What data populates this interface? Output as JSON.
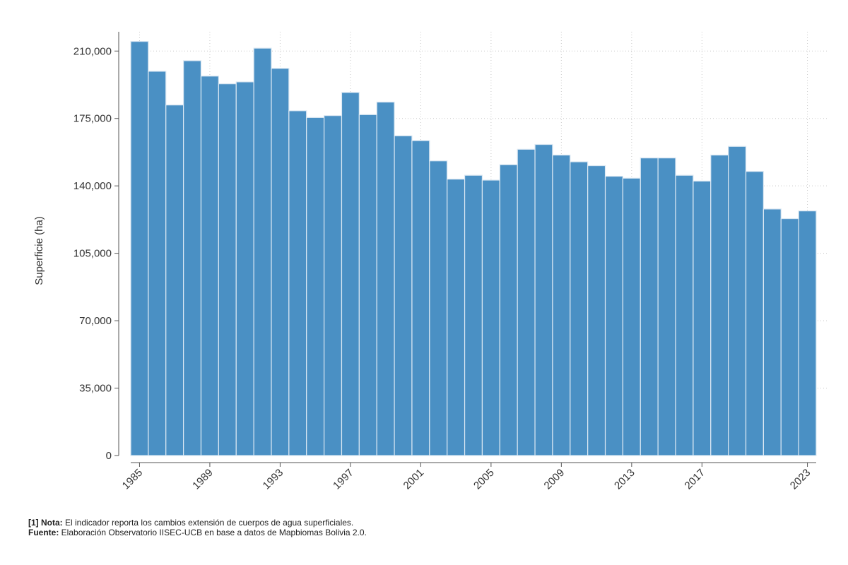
{
  "chart_data": {
    "type": "bar",
    "title": "",
    "ylabel": "Superficie (ha)",
    "xlabel": "",
    "ylim": [
      0,
      220000
    ],
    "xlim": [
      1984.5,
      2023.5
    ],
    "yticks": [
      0,
      35000,
      70000,
      105000,
      140000,
      175000,
      210000
    ],
    "ytick_labels": [
      "0",
      "35,000",
      "70,000",
      "105,000",
      "140,000",
      "175,000",
      "210,000"
    ],
    "xticks": [
      1985,
      1989,
      1993,
      1997,
      2001,
      2005,
      2009,
      2013,
      2017,
      2023
    ],
    "xtick_labels": [
      "1985",
      "1989",
      "1993",
      "1997",
      "2001",
      "2005",
      "2009",
      "2013",
      "2017",
      "2023"
    ],
    "grid": true,
    "bar_color": "#4a90c4",
    "categories": [
      1985,
      1986,
      1987,
      1988,
      1989,
      1990,
      1991,
      1992,
      1993,
      1994,
      1995,
      1996,
      1997,
      1998,
      1999,
      2000,
      2001,
      2002,
      2003,
      2004,
      2005,
      2006,
      2007,
      2008,
      2009,
      2010,
      2011,
      2012,
      2013,
      2014,
      2015,
      2016,
      2017,
      2018,
      2019,
      2020,
      2021,
      2022,
      2023
    ],
    "values": [
      215000,
      199500,
      182000,
      205000,
      197000,
      193000,
      194000,
      211500,
      201000,
      179000,
      175500,
      176500,
      188500,
      177000,
      183500,
      166000,
      163500,
      153000,
      143500,
      145500,
      143000,
      151000,
      159000,
      161500,
      156000,
      152500,
      150500,
      145000,
      144000,
      154500,
      154500,
      145500,
      142500,
      156000,
      160500,
      147500,
      128000,
      123000,
      127000
    ]
  },
  "notes": {
    "nota_label": "[1] Nota:",
    "nota_text": " El indicador reporta los cambios extensión de cuerpos de agua superficiales.",
    "fuente_label": "Fuente:",
    "fuente_text": " Elaboración Observatorio IISEC-UCB en base a datos de Mapbiomas Bolivia 2.0."
  }
}
